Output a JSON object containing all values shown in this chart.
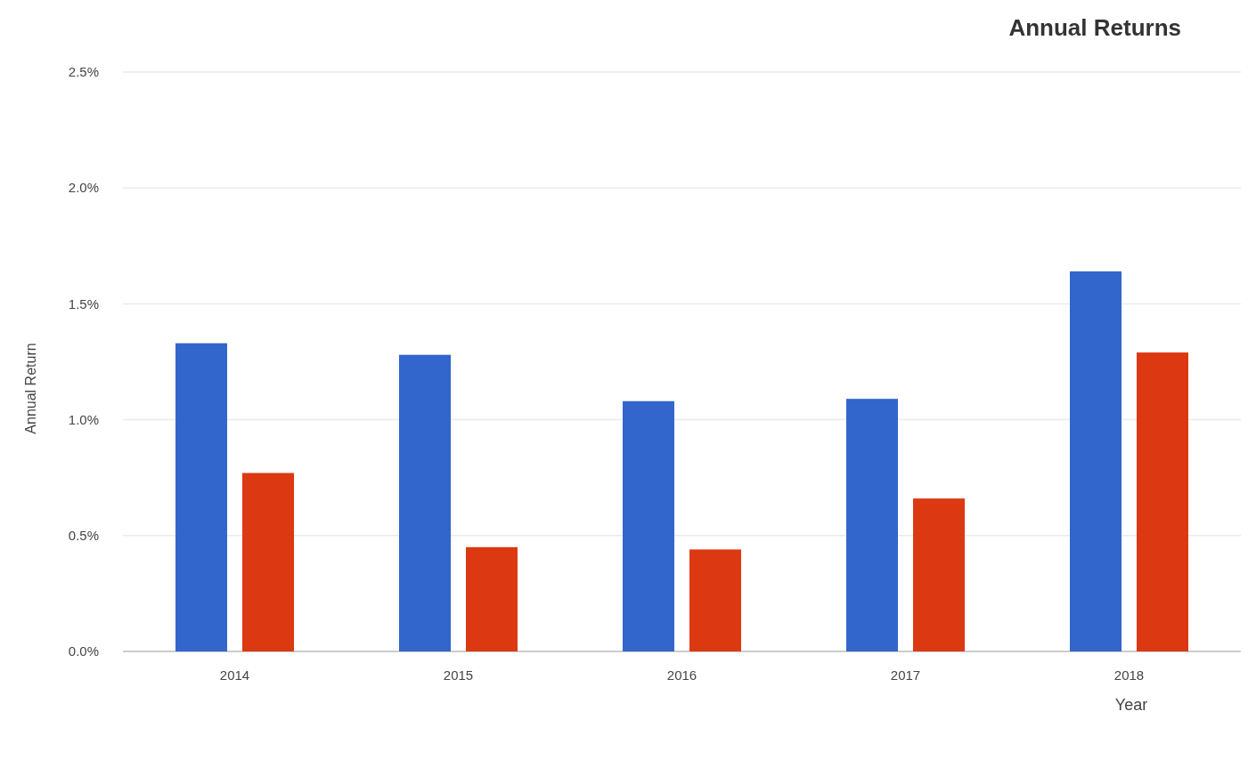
{
  "chart_data": {
    "type": "bar",
    "title": "Annual Returns",
    "xlabel": "Year",
    "ylabel": "Annual Return",
    "categories": [
      "2014",
      "2015",
      "2016",
      "2017",
      "2018"
    ],
    "series": [
      {
        "color": "#3366cc",
        "values": [
          1.33,
          1.28,
          1.08,
          1.09,
          1.64
        ]
      },
      {
        "color": "#dc3912",
        "values": [
          0.77,
          0.45,
          0.44,
          0.66,
          1.29
        ]
      }
    ],
    "ylim": [
      0,
      2.5
    ],
    "yticks": [
      {
        "value": 0,
        "label": "0.0%"
      },
      {
        "value": 0.5,
        "label": "0.5%"
      },
      {
        "value": 1,
        "label": "1.0%"
      },
      {
        "value": 1.5,
        "label": "1.5%"
      },
      {
        "value": 2,
        "label": "2.0%"
      },
      {
        "value": 2.5,
        "label": "2.5%"
      }
    ],
    "grid": "y"
  }
}
